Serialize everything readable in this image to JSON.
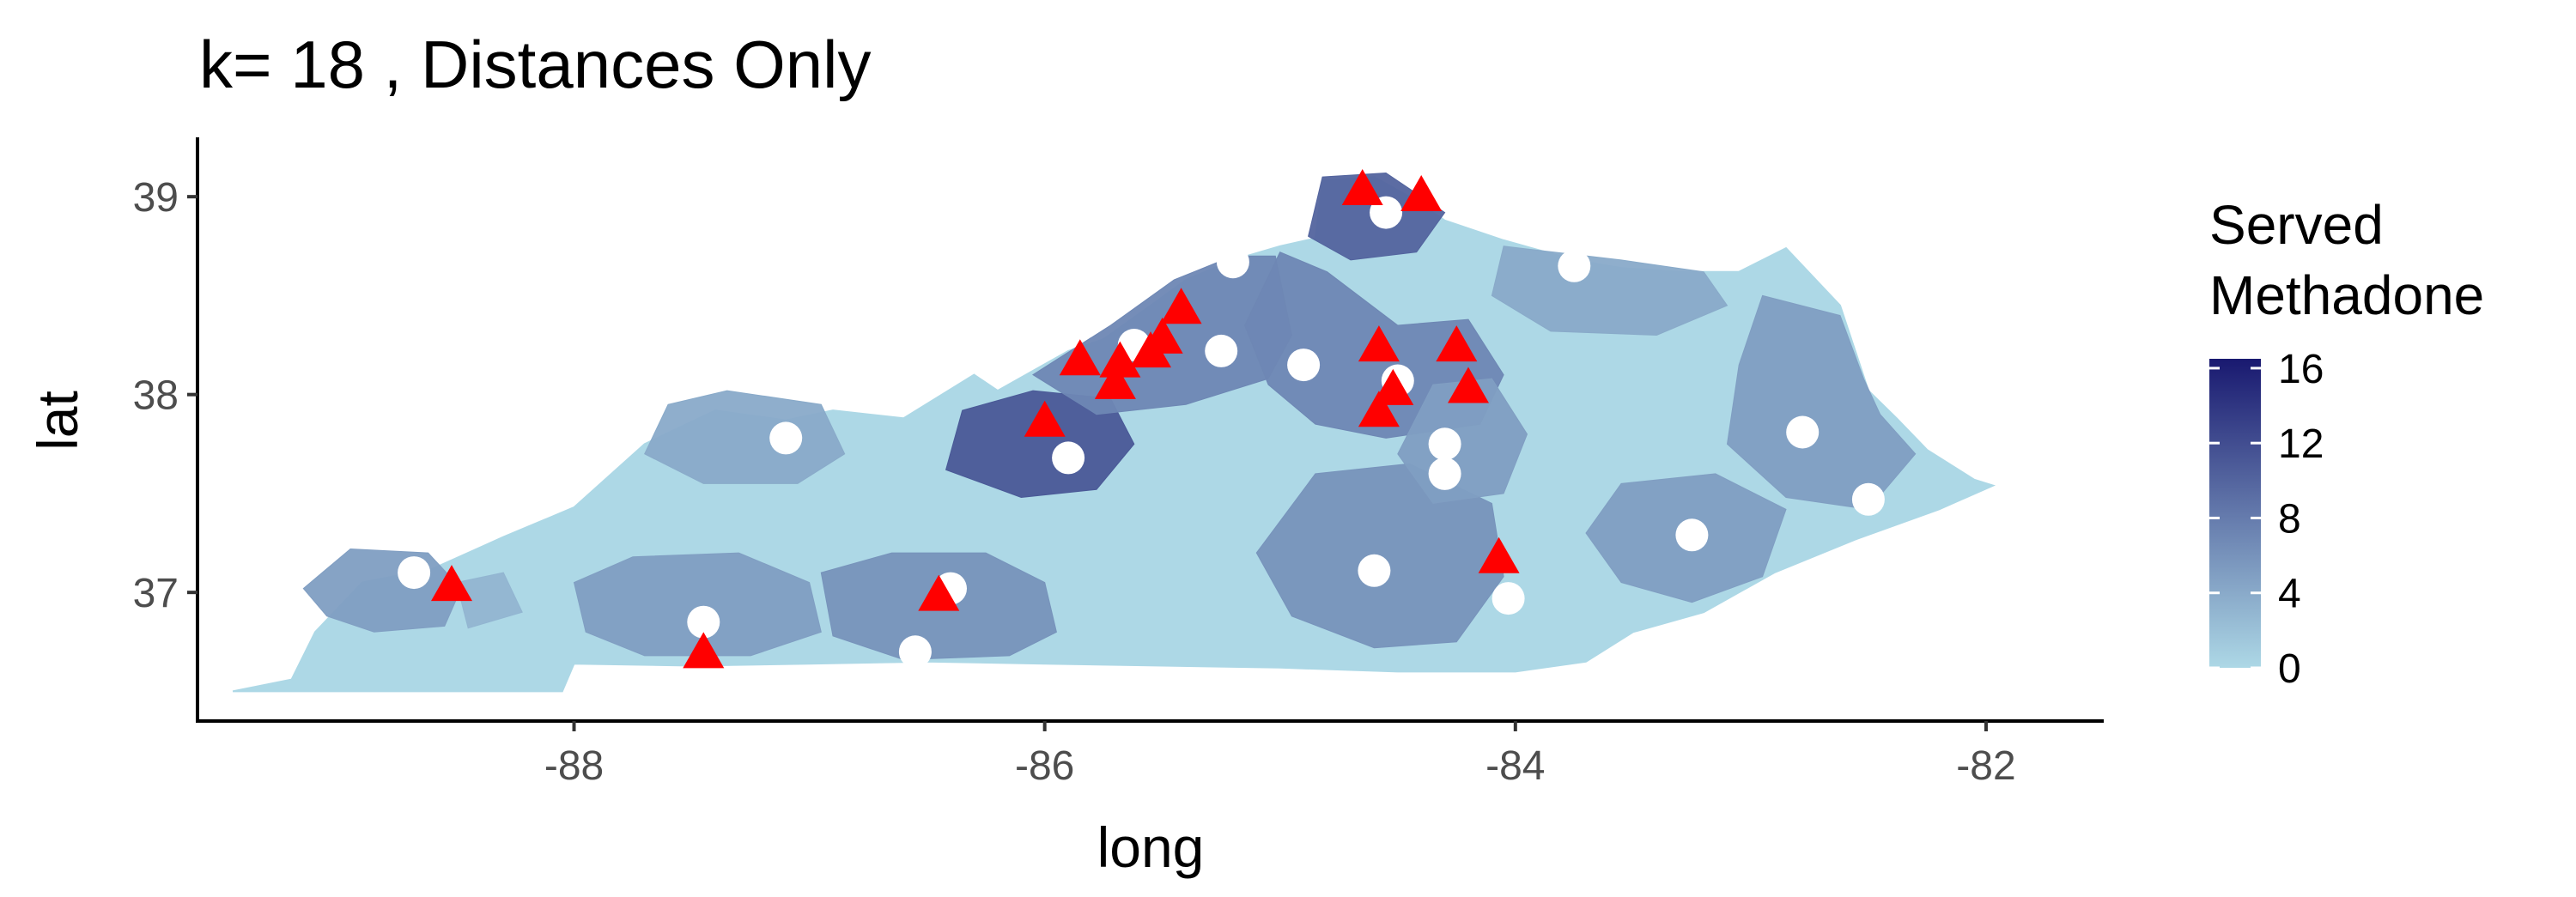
{
  "title": "k= 18 , Distances Only",
  "chart_data": {
    "type": "map",
    "title": "k= 18 , Distances Only",
    "xlabel": "long",
    "ylabel": "lat",
    "xlim": [
      -89.6,
      -81.5
    ],
    "ylim": [
      36.35,
      39.3
    ],
    "x_ticks": [
      -88,
      -86,
      -84,
      -82
    ],
    "x_tick_labels": [
      "-88",
      "-86",
      "-84",
      "-82"
    ],
    "y_ticks": [
      37,
      38,
      39
    ],
    "y_tick_labels": [
      "37",
      "38",
      "39"
    ],
    "grid": false,
    "legend": {
      "title_lines": [
        "Served",
        "Methadone"
      ],
      "position": "right",
      "min": 0,
      "max": 16.5,
      "ticks": [
        0,
        4,
        8,
        12,
        16
      ],
      "tick_labels": [
        "0",
        "4",
        "8",
        "12",
        "16"
      ],
      "color_low": "#add8e6",
      "color_high": "#191970"
    },
    "outline": [
      [
        -89.45,
        36.5
      ],
      [
        -89.2,
        36.56
      ],
      [
        -89.1,
        36.8
      ],
      [
        -88.9,
        37.05
      ],
      [
        -88.6,
        37.12
      ],
      [
        -88.3,
        37.28
      ],
      [
        -88.0,
        37.43
      ],
      [
        -87.7,
        37.75
      ],
      [
        -87.4,
        37.92
      ],
      [
        -87.1,
        37.87
      ],
      [
        -86.9,
        37.92
      ],
      [
        -86.6,
        37.88
      ],
      [
        -86.3,
        38.1
      ],
      [
        -86.2,
        38.02
      ],
      [
        -86.05,
        38.12
      ],
      [
        -85.9,
        38.22
      ],
      [
        -85.75,
        38.28
      ],
      [
        -85.55,
        38.45
      ],
      [
        -85.4,
        38.58
      ],
      [
        -85.2,
        38.68
      ],
      [
        -85.0,
        38.75
      ],
      [
        -84.85,
        38.79
      ],
      [
        -84.82,
        39.08
      ],
      [
        -84.6,
        39.1
      ],
      [
        -84.45,
        39.0
      ],
      [
        -84.3,
        38.88
      ],
      [
        -84.05,
        38.78
      ],
      [
        -83.75,
        38.68
      ],
      [
        -83.55,
        38.64
      ],
      [
        -83.3,
        38.62
      ],
      [
        -83.05,
        38.62
      ],
      [
        -82.85,
        38.74
      ],
      [
        -82.62,
        38.45
      ],
      [
        -82.55,
        38.2
      ],
      [
        -82.5,
        38.02
      ],
      [
        -82.38,
        37.88
      ],
      [
        -82.25,
        37.72
      ],
      [
        -82.05,
        37.57
      ],
      [
        -81.97,
        37.54
      ],
      [
        -82.2,
        37.42
      ],
      [
        -82.55,
        37.27
      ],
      [
        -82.9,
        37.1
      ],
      [
        -83.2,
        36.9
      ],
      [
        -83.5,
        36.8
      ],
      [
        -83.7,
        36.65
      ],
      [
        -84.0,
        36.6
      ],
      [
        -84.5,
        36.6
      ],
      [
        -85.0,
        36.62
      ],
      [
        -85.5,
        36.63
      ],
      [
        -86.0,
        36.64
      ],
      [
        -86.5,
        36.65
      ],
      [
        -87.0,
        36.64
      ],
      [
        -87.5,
        36.63
      ],
      [
        -88.0,
        36.64
      ],
      [
        -88.05,
        36.5
      ],
      [
        -88.8,
        36.5
      ],
      [
        -89.45,
        36.5
      ]
    ],
    "regions": [
      {
        "v": 5,
        "poly": [
          [
            -89.15,
            37.02
          ],
          [
            -88.95,
            37.22
          ],
          [
            -88.62,
            37.2
          ],
          [
            -88.48,
            37.02
          ],
          [
            -88.55,
            36.83
          ],
          [
            -88.85,
            36.8
          ],
          [
            -89.05,
            36.88
          ]
        ]
      },
      {
        "v": 3,
        "poly": [
          [
            -88.5,
            37.05
          ],
          [
            -88.3,
            37.1
          ],
          [
            -88.22,
            36.9
          ],
          [
            -88.45,
            36.82
          ]
        ]
      },
      {
        "v": 5,
        "poly": [
          [
            -88.0,
            37.05
          ],
          [
            -87.75,
            37.18
          ],
          [
            -87.3,
            37.2
          ],
          [
            -87.0,
            37.05
          ],
          [
            -86.95,
            36.8
          ],
          [
            -87.25,
            36.68
          ],
          [
            -87.7,
            36.68
          ],
          [
            -87.95,
            36.8
          ]
        ]
      },
      {
        "v": 6,
        "poly": [
          [
            -86.95,
            37.1
          ],
          [
            -86.65,
            37.2
          ],
          [
            -86.25,
            37.2
          ],
          [
            -86.0,
            37.05
          ],
          [
            -85.95,
            36.8
          ],
          [
            -86.15,
            36.68
          ],
          [
            -86.6,
            36.66
          ],
          [
            -86.9,
            36.78
          ]
        ]
      },
      {
        "v": 4,
        "poly": [
          [
            -87.6,
            37.95
          ],
          [
            -87.35,
            38.02
          ],
          [
            -86.95,
            37.95
          ],
          [
            -86.85,
            37.7
          ],
          [
            -87.05,
            37.55
          ],
          [
            -87.45,
            37.55
          ],
          [
            -87.7,
            37.7
          ]
        ]
      },
      {
        "v": 11,
        "poly": [
          [
            -86.35,
            37.92
          ],
          [
            -86.05,
            38.02
          ],
          [
            -85.72,
            37.98
          ],
          [
            -85.62,
            37.75
          ],
          [
            -85.78,
            37.52
          ],
          [
            -86.1,
            37.48
          ],
          [
            -86.42,
            37.62
          ]
        ]
      },
      {
        "v": 7,
        "poly": [
          [
            -86.05,
            38.1
          ],
          [
            -85.72,
            38.35
          ],
          [
            -85.45,
            38.58
          ],
          [
            -85.2,
            38.7
          ],
          [
            -85.02,
            38.7
          ],
          [
            -84.95,
            38.3
          ],
          [
            -85.05,
            38.08
          ],
          [
            -85.4,
            37.95
          ],
          [
            -85.78,
            37.9
          ]
        ]
      },
      {
        "v": 7,
        "poly": [
          [
            -85.0,
            38.72
          ],
          [
            -84.8,
            38.62
          ],
          [
            -84.5,
            38.35
          ],
          [
            -84.2,
            38.38
          ],
          [
            -84.05,
            38.1
          ],
          [
            -84.15,
            37.85
          ],
          [
            -84.55,
            37.78
          ],
          [
            -84.85,
            37.85
          ],
          [
            -85.05,
            38.05
          ],
          [
            -85.15,
            38.35
          ]
        ]
      },
      {
        "v": 10,
        "poly": [
          [
            -84.82,
            39.1
          ],
          [
            -84.55,
            39.12
          ],
          [
            -84.3,
            38.92
          ],
          [
            -84.42,
            38.72
          ],
          [
            -84.7,
            38.68
          ],
          [
            -84.88,
            38.8
          ]
        ]
      },
      {
        "v": 4,
        "poly": [
          [
            -84.05,
            38.75
          ],
          [
            -83.55,
            38.68
          ],
          [
            -83.2,
            38.62
          ],
          [
            -83.1,
            38.45
          ],
          [
            -83.4,
            38.3
          ],
          [
            -83.85,
            38.32
          ],
          [
            -84.1,
            38.5
          ]
        ]
      },
      {
        "v": 5,
        "poly": [
          [
            -82.95,
            38.5
          ],
          [
            -82.62,
            38.4
          ],
          [
            -82.52,
            38.08
          ],
          [
            -82.45,
            37.9
          ],
          [
            -82.3,
            37.7
          ],
          [
            -82.5,
            37.42
          ],
          [
            -82.85,
            37.48
          ],
          [
            -83.1,
            37.75
          ],
          [
            -83.05,
            38.15
          ]
        ]
      },
      {
        "v": 5,
        "poly": [
          [
            -83.55,
            37.55
          ],
          [
            -83.15,
            37.6
          ],
          [
            -82.85,
            37.42
          ],
          [
            -82.95,
            37.08
          ],
          [
            -83.25,
            36.95
          ],
          [
            -83.55,
            37.05
          ],
          [
            -83.7,
            37.3
          ]
        ]
      },
      {
        "v": 6,
        "poly": [
          [
            -84.85,
            37.6
          ],
          [
            -84.45,
            37.65
          ],
          [
            -84.1,
            37.45
          ],
          [
            -84.05,
            37.08
          ],
          [
            -84.25,
            36.75
          ],
          [
            -84.6,
            36.72
          ],
          [
            -84.95,
            36.88
          ],
          [
            -85.1,
            37.2
          ]
        ]
      },
      {
        "v": 5,
        "poly": [
          [
            -84.35,
            38.05
          ],
          [
            -84.1,
            38.08
          ],
          [
            -83.95,
            37.8
          ],
          [
            -84.05,
            37.5
          ],
          [
            -84.35,
            37.45
          ],
          [
            -84.5,
            37.7
          ]
        ]
      }
    ],
    "facilities": [
      {
        "long": -88.68,
        "lat": 37.1
      },
      {
        "long": -87.45,
        "lat": 36.85
      },
      {
        "long": -86.55,
        "lat": 36.7
      },
      {
        "long": -86.4,
        "lat": 37.02
      },
      {
        "long": -87.1,
        "lat": 37.78
      },
      {
        "long": -85.9,
        "lat": 37.68
      },
      {
        "long": -85.62,
        "lat": 38.25
      },
      {
        "long": -85.2,
        "lat": 38.67
      },
      {
        "long": -85.25,
        "lat": 38.22
      },
      {
        "long": -84.9,
        "lat": 38.15
      },
      {
        "long": -84.5,
        "lat": 38.07
      },
      {
        "long": -84.55,
        "lat": 38.92
      },
      {
        "long": -83.75,
        "lat": 38.65
      },
      {
        "long": -84.3,
        "lat": 37.75
      },
      {
        "long": -84.3,
        "lat": 37.6
      },
      {
        "long": -84.6,
        "lat": 37.11
      },
      {
        "long": -84.03,
        "lat": 36.97
      },
      {
        "long": -82.78,
        "lat": 37.81
      },
      {
        "long": -82.5,
        "lat": 37.47
      },
      {
        "long": -83.25,
        "lat": 37.29
      }
    ],
    "patients": [
      {
        "long": -88.52,
        "lat": 37.03
      },
      {
        "long": -87.45,
        "lat": 36.69
      },
      {
        "long": -86.45,
        "lat": 36.98
      },
      {
        "long": -86.0,
        "lat": 37.86
      },
      {
        "long": -85.85,
        "lat": 38.17
      },
      {
        "long": -85.7,
        "lat": 38.05
      },
      {
        "long": -85.68,
        "lat": 38.16
      },
      {
        "long": -85.55,
        "lat": 38.21
      },
      {
        "long": -85.5,
        "lat": 38.28
      },
      {
        "long": -85.42,
        "lat": 38.43
      },
      {
        "long": -84.65,
        "lat": 39.03
      },
      {
        "long": -84.4,
        "lat": 39.0
      },
      {
        "long": -84.58,
        "lat": 38.24
      },
      {
        "long": -84.52,
        "lat": 38.02
      },
      {
        "long": -84.58,
        "lat": 37.91
      },
      {
        "long": -84.25,
        "lat": 38.24
      },
      {
        "long": -84.2,
        "lat": 38.03
      },
      {
        "long": -84.07,
        "lat": 37.17
      }
    ]
  }
}
